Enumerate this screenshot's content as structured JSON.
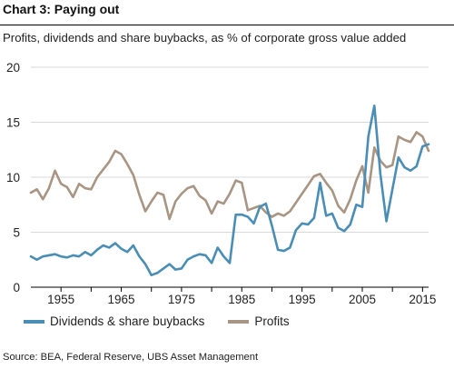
{
  "chart_data": {
    "type": "line",
    "title": "Chart 3: Paying out",
    "subtitle": "Profits, dividends and share buybacks, as % of corporate gross value added",
    "source": "Source: BEA, Federal Reserve, UBS Asset Management",
    "xlabel": "",
    "ylabel": "",
    "xlim": [
      1950,
      2016
    ],
    "ylim": [
      0,
      20
    ],
    "x_ticks": [
      1955,
      1965,
      1975,
      1985,
      1995,
      2005,
      2015
    ],
    "y_ticks": [
      0,
      5,
      10,
      15,
      20
    ],
    "grid": "horizontal",
    "legend_position": "bottom-left",
    "x": [
      1950,
      1951,
      1952,
      1953,
      1954,
      1955,
      1956,
      1957,
      1958,
      1959,
      1960,
      1961,
      1962,
      1963,
      1964,
      1965,
      1966,
      1967,
      1968,
      1969,
      1970,
      1971,
      1972,
      1973,
      1974,
      1975,
      1976,
      1977,
      1978,
      1979,
      1980,
      1981,
      1982,
      1983,
      1984,
      1985,
      1986,
      1987,
      1988,
      1989,
      1990,
      1991,
      1992,
      1993,
      1994,
      1995,
      1996,
      1997,
      1998,
      1999,
      2000,
      2001,
      2002,
      2003,
      2004,
      2005,
      2006,
      2007,
      2008,
      2009,
      2010,
      2011,
      2012,
      2013,
      2014,
      2015,
      2016
    ],
    "series": [
      {
        "name": "Dividends & share buybacks",
        "color": "#4a8db5",
        "values": [
          2.8,
          2.5,
          2.8,
          2.9,
          3.0,
          2.8,
          2.7,
          2.9,
          2.8,
          3.2,
          2.9,
          3.4,
          3.8,
          3.6,
          4.0,
          3.5,
          3.2,
          3.8,
          2.8,
          2.1,
          1.1,
          1.3,
          1.7,
          2.1,
          1.6,
          1.7,
          2.5,
          2.8,
          3.0,
          2.9,
          2.2,
          3.6,
          2.8,
          2.2,
          6.6,
          6.6,
          6.4,
          5.8,
          7.3,
          7.6,
          5.6,
          3.4,
          3.3,
          3.6,
          5.2,
          5.8,
          5.7,
          6.3,
          9.5,
          6.5,
          6.7,
          5.4,
          5.1,
          5.7,
          7.5,
          7.3,
          13.7,
          16.5,
          10.3,
          6.0,
          8.9,
          11.8,
          10.9,
          10.6,
          11.0,
          12.8,
          13.0
        ]
      },
      {
        "name": "Profits",
        "color": "#a89583",
        "values": [
          8.6,
          8.9,
          8.0,
          9.0,
          10.6,
          9.4,
          9.1,
          8.2,
          9.4,
          9.0,
          8.9,
          10.0,
          10.7,
          11.4,
          12.4,
          12.1,
          11.2,
          10.2,
          8.4,
          6.9,
          7.8,
          8.6,
          8.4,
          6.2,
          7.8,
          8.5,
          9.0,
          9.2,
          8.3,
          7.9,
          6.7,
          7.8,
          7.6,
          8.5,
          9.7,
          9.5,
          7.0,
          7.2,
          7.4,
          6.8,
          6.4,
          6.7,
          6.5,
          6.9,
          7.7,
          8.5,
          9.3,
          10.1,
          10.3,
          9.5,
          8.8,
          7.4,
          6.8,
          8.0,
          9.7,
          11.0,
          8.6,
          12.7,
          11.5,
          10.9,
          11.1,
          13.7,
          13.4,
          13.2,
          14.1,
          13.7,
          12.4
        ]
      }
    ]
  }
}
